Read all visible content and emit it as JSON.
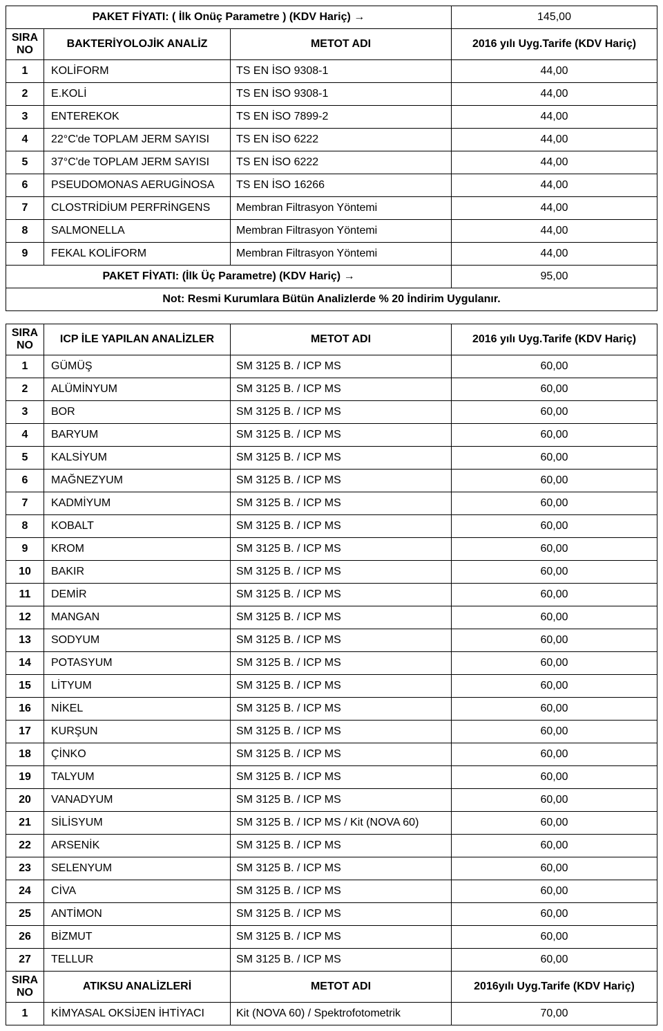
{
  "columns": {
    "sira_no": "SIRA NO",
    "metot_adi": "METOT ADI",
    "tarife_2016": "2016 yılı Uyg.Tarife (KDV Hariç)",
    "tarife_2016_b": "2016yılı Uyg.Tarife (KDV Hariç)"
  },
  "table1": {
    "pkg_top_label": "PAKET FİYATI: ( İlk Onüç Parametre ) (KDV Hariç) →",
    "pkg_top_price": "145,00",
    "name_header": "BAKTERİYOLOJİK ANALİZ",
    "rows": [
      {
        "no": "1",
        "name": "KOLİFORM",
        "meth": "TS EN İSO 9308-1",
        "price": "44,00"
      },
      {
        "no": "2",
        "name": "E.KOLİ",
        "meth": "TS EN İSO 9308-1",
        "price": "44,00"
      },
      {
        "no": "3",
        "name": "ENTEREKOK",
        "meth": "TS EN İSO 7899-2",
        "price": "44,00"
      },
      {
        "no": "4",
        "name": "22°C'de TOPLAM JERM SAYISI",
        "meth": "TS EN İSO 6222",
        "price": "44,00"
      },
      {
        "no": "5",
        "name": "37°C'de TOPLAM JERM SAYISI",
        "meth": "TS EN İSO 6222",
        "price": "44,00"
      },
      {
        "no": "6",
        "name": "PSEUDOMONAS AERUGİNOSA",
        "meth": "TS EN İSO 16266",
        "price": "44,00"
      },
      {
        "no": "7",
        "name": "CLOSTRİDİUM PERFRİNGENS",
        "meth": "Membran Filtrasyon Yöntemi",
        "price": "44,00"
      },
      {
        "no": "8",
        "name": "SALMONELLA",
        "meth": "Membran Filtrasyon Yöntemi",
        "price": "44,00"
      },
      {
        "no": "9",
        "name": "FEKAL KOLİFORM",
        "meth": "Membran Filtrasyon Yöntemi",
        "price": "44,00"
      }
    ],
    "pkg_bot_label": "PAKET FİYATI: (İlk Üç Parametre) (KDV Hariç) →",
    "pkg_bot_price": "95,00",
    "note": "Not: Resmi Kurumlara  Bütün Analizlerde % 20 İndirim Uygulanır."
  },
  "table2": {
    "name_header": "ICP İLE YAPILAN ANALİZLER",
    "rows": [
      {
        "no": "1",
        "name": "GÜMÜŞ",
        "meth": "SM 3125 B. / ICP MS",
        "price": "60,00"
      },
      {
        "no": "2",
        "name": "ALÜMİNYUM",
        "meth": "SM 3125 B. / ICP MS",
        "price": "60,00"
      },
      {
        "no": "3",
        "name": "BOR",
        "meth": "SM 3125 B. / ICP MS",
        "price": "60,00"
      },
      {
        "no": "4",
        "name": "BARYUM",
        "meth": "SM 3125 B. / ICP MS",
        "price": "60,00"
      },
      {
        "no": "5",
        "name": "KALSİYUM",
        "meth": "SM 3125 B. / ICP MS",
        "price": "60,00"
      },
      {
        "no": "6",
        "name": "MAĞNEZYUM",
        "meth": "SM 3125 B. / ICP MS",
        "price": "60,00"
      },
      {
        "no": "7",
        "name": "KADMİYUM",
        "meth": "SM 3125 B. / ICP MS",
        "price": "60,00"
      },
      {
        "no": "8",
        "name": "KOBALT",
        "meth": "SM 3125 B. / ICP MS",
        "price": "60,00"
      },
      {
        "no": "9",
        "name": "KROM",
        "meth": "SM 3125 B. / ICP MS",
        "price": "60,00"
      },
      {
        "no": "10",
        "name": "BAKIR",
        "meth": "SM 3125 B. / ICP MS",
        "price": "60,00"
      },
      {
        "no": "11",
        "name": "DEMİR",
        "meth": "SM 3125 B. / ICP MS",
        "price": "60,00"
      },
      {
        "no": "12",
        "name": "MANGAN",
        "meth": "SM 3125 B. / ICP MS",
        "price": "60,00"
      },
      {
        "no": "13",
        "name": "SODYUM",
        "meth": "SM 3125 B. / ICP MS",
        "price": "60,00"
      },
      {
        "no": "14",
        "name": "POTASYUM",
        "meth": "SM 3125 B. / ICP MS",
        "price": "60,00"
      },
      {
        "no": "15",
        "name": "LİTYUM",
        "meth": "SM 3125 B. / ICP MS",
        "price": "60,00"
      },
      {
        "no": "16",
        "name": "NİKEL",
        "meth": "SM 3125 B. / ICP MS",
        "price": "60,00"
      },
      {
        "no": "17",
        "name": "KURŞUN",
        "meth": "SM 3125 B. / ICP MS",
        "price": "60,00"
      },
      {
        "no": "18",
        "name": "ÇİNKO",
        "meth": "SM 3125 B. / ICP MS",
        "price": "60,00"
      },
      {
        "no": "19",
        "name": "TALYUM",
        "meth": "SM 3125 B. / ICP MS",
        "price": "60,00"
      },
      {
        "no": "20",
        "name": "VANADYUM",
        "meth": "SM 3125 B. / ICP MS",
        "price": "60,00"
      },
      {
        "no": "21",
        "name": "SİLİSYUM",
        "meth": "SM 3125 B. / ICP MS / Kit (NOVA 60)",
        "price": "60,00"
      },
      {
        "no": "22",
        "name": "ARSENİK",
        "meth": "SM 3125 B. / ICP MS",
        "price": "60,00"
      },
      {
        "no": "23",
        "name": "SELENYUM",
        "meth": "SM 3125 B. / ICP MS",
        "price": "60,00"
      },
      {
        "no": "24",
        "name": "CİVA",
        "meth": "SM 3125 B. / ICP MS",
        "price": "60,00"
      },
      {
        "no": "25",
        "name": "ANTİMON",
        "meth": "SM 3125 B. / ICP MS",
        "price": "60,00"
      },
      {
        "no": "26",
        "name": "BİZMUT",
        "meth": "SM 3125 B. / ICP MS",
        "price": "60,00"
      },
      {
        "no": "27",
        "name": "TELLUR",
        "meth": "SM 3125 B. / ICP MS",
        "price": "60,00"
      }
    ]
  },
  "table3": {
    "name_header": "ATIKSU ANALİZLERİ",
    "rows": [
      {
        "no": "1",
        "name": "KİMYASAL OKSİJEN İHTİYACI",
        "meth": "Kit (NOVA 60) / Spektrofotometrik",
        "price": "70,00"
      }
    ]
  }
}
